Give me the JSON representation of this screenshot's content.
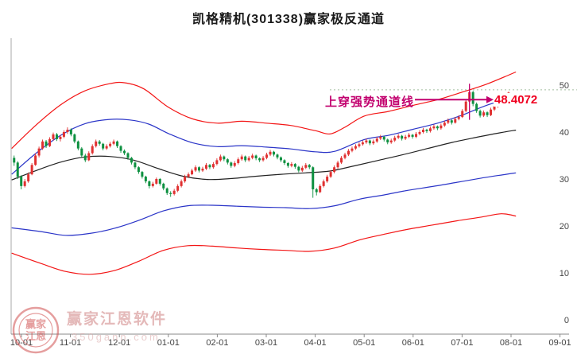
{
  "title": "凯格精机(301338)赢家极反通道",
  "annotation": {
    "text": "上穿强势通道线",
    "price": "48.4072",
    "color": "#c2006e",
    "candle_index": 128,
    "vline_top_value": 50.3,
    "vline_bottom_value": 42.6,
    "arrow_value": 46.9
  },
  "watermark": {
    "brand": "赢家江恩软件",
    "site": "350gann.com",
    "logo_line1": "赢家",
    "logo_line2": "江恩"
  },
  "chart_data": {
    "type": "candlestick",
    "title": "凯格精机(301338)赢家极反通道",
    "x_unit": "months from 10-01",
    "x_tick_labels": [
      "10-01",
      "11-01",
      "12-01",
      "01-01",
      "02-01",
      "03-01",
      "04-01",
      "05-01",
      "06-01",
      "07-01",
      "08-01",
      "09-01"
    ],
    "y_ticks": [
      0,
      10,
      20,
      30,
      40,
      50
    ],
    "y_range": [
      0,
      55
    ],
    "grid": false,
    "up_color": "#e03030",
    "down_color": "#0d9040",
    "dotted_line": {
      "value": 49.0,
      "color": "#a3bfa0"
    },
    "t_start": -0.15,
    "t_end": 9.95,
    "candles": [
      [
        34.5,
        35.0,
        32.8,
        33.5
      ],
      [
        33.5,
        33.8,
        30.0,
        30.5
      ],
      [
        30.5,
        30.8,
        27.8,
        28.5
      ],
      [
        28.5,
        30.0,
        28.2,
        29.5
      ],
      [
        29.5,
        31.4,
        29.2,
        31.0
      ],
      [
        31.0,
        33.4,
        30.8,
        33.0
      ],
      [
        33.0,
        35.5,
        32.8,
        35.0
      ],
      [
        35.0,
        36.9,
        34.6,
        36.5
      ],
      [
        36.5,
        38.4,
        36.2,
        38.0
      ],
      [
        38.0,
        38.3,
        36.6,
        37.0
      ],
      [
        37.0,
        38.9,
        36.8,
        38.5
      ],
      [
        38.5,
        39.9,
        38.2,
        39.5
      ],
      [
        39.5,
        39.8,
        38.1,
        38.5
      ],
      [
        38.5,
        39.4,
        38.0,
        39.0
      ],
      [
        39.0,
        40.4,
        38.7,
        40.0
      ],
      [
        40.0,
        41.0,
        39.6,
        40.5
      ],
      [
        40.5,
        40.8,
        39.1,
        39.5
      ],
      [
        39.5,
        39.7,
        37.6,
        38.0
      ],
      [
        38.0,
        38.2,
        36.1,
        36.5
      ],
      [
        36.5,
        36.8,
        34.6,
        35.0
      ],
      [
        35.0,
        35.4,
        33.6,
        34.0
      ],
      [
        34.0,
        35.9,
        33.8,
        35.5
      ],
      [
        35.5,
        37.4,
        35.2,
        37.0
      ],
      [
        37.0,
        38.4,
        36.7,
        38.0
      ],
      [
        38.0,
        38.3,
        37.1,
        37.5
      ],
      [
        37.5,
        37.7,
        36.1,
        36.5
      ],
      [
        36.5,
        37.4,
        36.2,
        37.0
      ],
      [
        37.0,
        37.9,
        36.7,
        37.5
      ],
      [
        37.5,
        38.4,
        37.2,
        38.0
      ],
      [
        38.0,
        38.2,
        36.6,
        37.0
      ],
      [
        37.0,
        37.2,
        35.6,
        36.0
      ],
      [
        36.0,
        36.3,
        35.1,
        35.5
      ],
      [
        35.5,
        35.7,
        34.1,
        34.5
      ],
      [
        34.5,
        34.7,
        33.1,
        33.5
      ],
      [
        33.5,
        33.7,
        32.1,
        32.5
      ],
      [
        32.5,
        32.7,
        31.1,
        31.5
      ],
      [
        31.5,
        31.7,
        30.1,
        30.5
      ],
      [
        30.5,
        30.7,
        29.1,
        29.5
      ],
      [
        29.5,
        29.7,
        28.0,
        28.5
      ],
      [
        28.5,
        29.4,
        28.2,
        29.0
      ],
      [
        29.0,
        30.3,
        28.8,
        30.0
      ],
      [
        30.0,
        30.2,
        28.6,
        29.0
      ],
      [
        29.0,
        29.2,
        27.6,
        28.0
      ],
      [
        28.0,
        28.2,
        26.6,
        27.0
      ],
      [
        27.0,
        27.4,
        26.2,
        26.8
      ],
      [
        26.8,
        27.9,
        26.5,
        27.5
      ],
      [
        27.5,
        28.9,
        27.2,
        28.5
      ],
      [
        28.5,
        29.9,
        28.2,
        29.5
      ],
      [
        29.5,
        30.9,
        29.2,
        30.5
      ],
      [
        30.5,
        31.4,
        30.2,
        31.0
      ],
      [
        31.0,
        32.2,
        30.8,
        31.8
      ],
      [
        31.8,
        32.9,
        31.5,
        32.5
      ],
      [
        32.5,
        32.7,
        31.4,
        31.8
      ],
      [
        31.8,
        32.6,
        31.5,
        32.2
      ],
      [
        32.2,
        33.4,
        31.9,
        33.0
      ],
      [
        33.0,
        33.2,
        32.1,
        32.5
      ],
      [
        32.5,
        33.6,
        32.2,
        33.2
      ],
      [
        33.2,
        34.4,
        32.9,
        34.0
      ],
      [
        34.0,
        35.2,
        33.7,
        34.8
      ],
      [
        34.8,
        35.0,
        33.8,
        34.2
      ],
      [
        34.2,
        34.4,
        33.1,
        33.5
      ],
      [
        33.5,
        33.7,
        32.4,
        32.8
      ],
      [
        32.8,
        33.8,
        32.5,
        33.4
      ],
      [
        33.4,
        34.6,
        33.1,
        34.2
      ],
      [
        34.2,
        35.2,
        33.9,
        34.8
      ],
      [
        34.8,
        35.0,
        33.6,
        34.0
      ],
      [
        34.0,
        34.9,
        33.7,
        34.5
      ],
      [
        34.5,
        35.4,
        34.2,
        35.0
      ],
      [
        35.0,
        35.2,
        34.0,
        34.4
      ],
      [
        34.4,
        34.6,
        33.6,
        34.0
      ],
      [
        34.0,
        34.9,
        33.7,
        34.5
      ],
      [
        34.5,
        35.6,
        34.2,
        35.2
      ],
      [
        35.2,
        36.2,
        34.9,
        35.8
      ],
      [
        35.8,
        36.0,
        34.8,
        35.2
      ],
      [
        35.2,
        35.4,
        34.2,
        34.6
      ],
      [
        34.6,
        34.8,
        33.6,
        34.0
      ],
      [
        34.0,
        34.2,
        33.0,
        33.4
      ],
      [
        33.4,
        33.6,
        32.4,
        32.8
      ],
      [
        32.8,
        33.6,
        32.5,
        33.2
      ],
      [
        33.2,
        33.4,
        32.2,
        32.6
      ],
      [
        32.6,
        32.8,
        31.4,
        31.8
      ],
      [
        31.8,
        32.8,
        31.5,
        32.4
      ],
      [
        32.4,
        33.4,
        32.1,
        33.0
      ],
      [
        33.0,
        33.2,
        32.1,
        32.5
      ],
      [
        32.5,
        32.7,
        26.0,
        27.8
      ],
      [
        27.8,
        28.1,
        26.5,
        27.2
      ],
      [
        27.2,
        28.9,
        27.0,
        28.5
      ],
      [
        28.5,
        29.9,
        28.2,
        29.5
      ],
      [
        29.5,
        30.9,
        29.2,
        30.5
      ],
      [
        30.5,
        31.9,
        30.2,
        31.5
      ],
      [
        31.5,
        32.9,
        31.2,
        32.5
      ],
      [
        32.5,
        33.9,
        32.2,
        33.5
      ],
      [
        33.5,
        34.9,
        33.2,
        34.5
      ],
      [
        34.5,
        35.6,
        34.2,
        35.2
      ],
      [
        35.2,
        36.4,
        34.9,
        36.0
      ],
      [
        36.0,
        36.9,
        35.7,
        36.5
      ],
      [
        36.5,
        37.4,
        36.2,
        37.0
      ],
      [
        37.0,
        37.8,
        36.7,
        37.4
      ],
      [
        37.4,
        38.2,
        37.1,
        37.8
      ],
      [
        37.8,
        38.6,
        37.5,
        38.2
      ],
      [
        38.2,
        38.4,
        37.2,
        37.6
      ],
      [
        37.6,
        38.4,
        37.3,
        38.0
      ],
      [
        38.0,
        39.0,
        37.7,
        38.6
      ],
      [
        38.6,
        39.4,
        38.3,
        39.0
      ],
      [
        39.0,
        39.2,
        38.0,
        38.4
      ],
      [
        38.4,
        38.6,
        37.4,
        37.8
      ],
      [
        37.8,
        38.6,
        37.5,
        38.2
      ],
      [
        38.2,
        39.2,
        37.9,
        38.8
      ],
      [
        38.8,
        39.6,
        38.5,
        39.2
      ],
      [
        39.2,
        39.4,
        38.2,
        38.6
      ],
      [
        38.6,
        39.4,
        38.3,
        39.0
      ],
      [
        39.0,
        39.8,
        38.7,
        39.4
      ],
      [
        39.4,
        39.6,
        38.6,
        39.0
      ],
      [
        39.0,
        40.0,
        38.7,
        39.6
      ],
      [
        39.6,
        40.4,
        39.3,
        40.0
      ],
      [
        40.0,
        40.9,
        39.7,
        40.5
      ],
      [
        40.5,
        40.7,
        39.8,
        40.2
      ],
      [
        40.2,
        41.2,
        39.9,
        40.8
      ],
      [
        40.8,
        41.6,
        40.5,
        41.2
      ],
      [
        41.2,
        41.4,
        40.4,
        40.8
      ],
      [
        40.8,
        41.8,
        40.5,
        41.4
      ],
      [
        41.4,
        42.4,
        41.1,
        42.0
      ],
      [
        42.0,
        42.9,
        41.7,
        42.5
      ],
      [
        42.5,
        42.7,
        41.6,
        42.0
      ],
      [
        42.0,
        43.2,
        41.8,
        42.8
      ],
      [
        42.8,
        43.6,
        42.5,
        43.2
      ],
      [
        43.2,
        44.9,
        43.0,
        44.5
      ],
      [
        44.5,
        47.0,
        44.2,
        46.5
      ],
      [
        46.5,
        49.5,
        46.2,
        48.5
      ],
      [
        48.5,
        48.8,
        45.5,
        46.0
      ],
      [
        46.0,
        46.3,
        44.1,
        44.5
      ],
      [
        44.5,
        44.8,
        43.1,
        43.5
      ],
      [
        43.5,
        44.6,
        43.2,
        44.2
      ],
      [
        44.2,
        44.4,
        43.2,
        43.6
      ],
      [
        43.6,
        45.2,
        43.4,
        44.8
      ],
      [
        44.8,
        45.9,
        44.5,
        45.5
      ],
      [
        45.5,
        46.9,
        45.2,
        46.5
      ],
      [
        46.5,
        47.6,
        46.2,
        47.2
      ],
      [
        47.2,
        47.4,
        46.1,
        46.6
      ],
      [
        46.6,
        48.6,
        46.3,
        48.4
      ]
    ],
    "lines": [
      {
        "name": "upper-red-channel",
        "color": "#f31515",
        "points": [
          [
            -0.2,
            36.5
          ],
          [
            0.3,
            41.5
          ],
          [
            0.8,
            45.8
          ],
          [
            1.3,
            48.8
          ],
          [
            1.8,
            50.3
          ],
          [
            2.1,
            50.5
          ],
          [
            2.5,
            49.2
          ],
          [
            3.0,
            45.3
          ],
          [
            3.5,
            42.8
          ],
          [
            4.0,
            41.9
          ],
          [
            4.5,
            42.3
          ],
          [
            5.0,
            41.9
          ],
          [
            5.5,
            41.4
          ],
          [
            6.0,
            40.3
          ],
          [
            6.3,
            39.6
          ],
          [
            6.6,
            41.0
          ],
          [
            7.0,
            43.4
          ],
          [
            7.5,
            44.4
          ],
          [
            8.0,
            45.7
          ],
          [
            8.5,
            46.9
          ],
          [
            9.0,
            48.5
          ],
          [
            9.5,
            50.2
          ],
          [
            10.1,
            52.8
          ]
        ]
      },
      {
        "name": "upper-blue-strength",
        "color": "#2b35c8",
        "points": [
          [
            -0.2,
            31.0
          ],
          [
            0.3,
            35.5
          ],
          [
            0.8,
            39.3
          ],
          [
            1.3,
            41.8
          ],
          [
            1.8,
            42.7
          ],
          [
            2.2,
            42.6
          ],
          [
            2.6,
            41.7
          ],
          [
            3.0,
            39.7
          ],
          [
            3.5,
            37.7
          ],
          [
            4.0,
            36.9
          ],
          [
            4.5,
            37.1
          ],
          [
            5.0,
            36.8
          ],
          [
            5.5,
            36.4
          ],
          [
            6.0,
            35.8
          ],
          [
            6.4,
            35.9
          ],
          [
            7.0,
            38.4
          ],
          [
            7.5,
            39.3
          ],
          [
            8.0,
            40.6
          ],
          [
            8.5,
            41.9
          ],
          [
            9.0,
            43.6
          ],
          [
            9.5,
            45.7
          ],
          [
            10.1,
            47.6
          ]
        ]
      },
      {
        "name": "middle-black",
        "color": "#222222",
        "points": [
          [
            -0.2,
            29.8
          ],
          [
            0.3,
            31.8
          ],
          [
            0.8,
            33.6
          ],
          [
            1.3,
            34.7
          ],
          [
            1.8,
            34.8
          ],
          [
            2.3,
            34.0
          ],
          [
            2.8,
            32.2
          ],
          [
            3.3,
            30.6
          ],
          [
            3.8,
            29.9
          ],
          [
            4.3,
            30.1
          ],
          [
            4.8,
            30.6
          ],
          [
            5.3,
            31.0
          ],
          [
            5.8,
            31.3
          ],
          [
            6.3,
            31.7
          ],
          [
            6.8,
            32.8
          ],
          [
            7.3,
            34.0
          ],
          [
            7.8,
            35.2
          ],
          [
            8.3,
            36.5
          ],
          [
            8.8,
            37.8
          ],
          [
            9.3,
            38.9
          ],
          [
            9.8,
            39.9
          ],
          [
            10.1,
            40.4
          ]
        ]
      },
      {
        "name": "lower-blue-weakness",
        "color": "#2b35c8",
        "points": [
          [
            -0.2,
            19.6
          ],
          [
            0.4,
            18.8
          ],
          [
            0.9,
            18.0
          ],
          [
            1.4,
            18.4
          ],
          [
            1.9,
            19.5
          ],
          [
            2.4,
            21.2
          ],
          [
            2.9,
            23.2
          ],
          [
            3.4,
            24.3
          ],
          [
            3.9,
            24.4
          ],
          [
            4.4,
            24.2
          ],
          [
            4.9,
            24.0
          ],
          [
            5.4,
            23.9
          ],
          [
            5.9,
            23.7
          ],
          [
            6.4,
            24.3
          ],
          [
            6.9,
            25.7
          ],
          [
            7.4,
            26.6
          ],
          [
            7.9,
            27.6
          ],
          [
            8.4,
            28.4
          ],
          [
            8.9,
            29.3
          ],
          [
            9.4,
            30.2
          ],
          [
            9.9,
            31.0
          ],
          [
            10.1,
            31.3
          ]
        ]
      },
      {
        "name": "lower-red-channel",
        "color": "#f31515",
        "points": [
          [
            -0.2,
            14.2
          ],
          [
            0.4,
            12.0
          ],
          [
            0.9,
            10.3
          ],
          [
            1.4,
            9.7
          ],
          [
            1.9,
            10.5
          ],
          [
            2.4,
            12.5
          ],
          [
            2.9,
            14.8
          ],
          [
            3.4,
            15.8
          ],
          [
            3.9,
            15.7
          ],
          [
            4.4,
            15.3
          ],
          [
            4.9,
            15.0
          ],
          [
            5.4,
            14.8
          ],
          [
            5.9,
            14.6
          ],
          [
            6.4,
            15.3
          ],
          [
            6.9,
            17.0
          ],
          [
            7.4,
            18.2
          ],
          [
            7.9,
            19.3
          ],
          [
            8.4,
            20.2
          ],
          [
            8.9,
            21.1
          ],
          [
            9.4,
            21.9
          ],
          [
            9.8,
            22.6
          ],
          [
            10.1,
            22.1
          ]
        ]
      }
    ]
  }
}
